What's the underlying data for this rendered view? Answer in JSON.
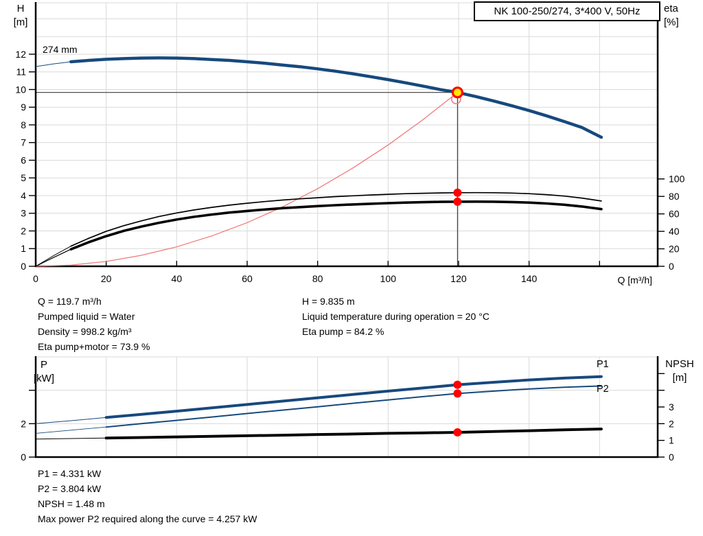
{
  "labels": {
    "h_axis": [
      "H",
      "[m]"
    ],
    "eta_axis": [
      "eta",
      "[%]"
    ],
    "q_axis": "Q [m³/h]",
    "p_axis": [
      "P",
      "[kW]"
    ],
    "npsh_axis": [
      "NPSH",
      "[m]"
    ],
    "impeller": "274 mm",
    "p1": "P1",
    "p2": "P2"
  },
  "annotations": {
    "mid_left": [
      "Q = 119.7 m³/h",
      "Pumped liquid = Water",
      "Density = 998.2 kg/m³",
      "Eta pump+motor = 73.9 %"
    ],
    "mid_right": [
      "H = 9.835 m",
      "Liquid temperature during operation = 20 °C",
      "Eta pump = 84.2 %"
    ],
    "bottom": [
      "P1 = 4.331 kW",
      "P2 = 3.804 kW",
      "NPSH = 1.48 m",
      "Max power P2 required along the curve = 4.257 kW"
    ]
  },
  "colors": {
    "curve_blue": "#17497d",
    "curve_black": "#000000",
    "system_red": "#f07878",
    "marker_red": "#ff0000",
    "duty_yellow": "#ffe800",
    "grid": "#d9d9d9",
    "crosshair": "#3c3c3c",
    "axis": "#000000",
    "label_blue": "#17497d"
  },
  "chart_data": [
    {
      "type": "line",
      "title": "NK 100-250/274, 3*400 V, 50Hz",
      "xlabel": "Q [m³/h]",
      "ylabel": "H [m]",
      "y2label": "eta [%]",
      "xlim": [
        0,
        176.5
      ],
      "x_ticks": [
        0,
        20,
        40,
        60,
        80,
        100,
        120,
        140,
        160
      ],
      "x_tick_labels": [
        "0",
        "20",
        "40",
        "60",
        "80",
        "100",
        "120",
        "140",
        ""
      ],
      "x_grid": [
        20,
        40,
        60,
        80,
        100,
        120,
        140,
        160
      ],
      "y_axes": {
        "H": {
          "lim": [
            0,
            14.91
          ],
          "ticks": [
            0,
            1,
            2,
            3,
            4,
            5,
            6,
            7,
            8,
            9,
            10,
            11,
            12
          ],
          "tick_labels": [
            "0",
            "1",
            "2",
            "3",
            "4",
            "5",
            "6",
            "7",
            "8",
            "9",
            "10",
            "11",
            "12"
          ],
          "grid": [
            1,
            2,
            3,
            4,
            5,
            6,
            7,
            8,
            9,
            10,
            11,
            12,
            13,
            14,
            14.91
          ]
        },
        "eta": {
          "lim": [
            0,
            100
          ],
          "ticks": [
            0,
            20,
            40,
            60,
            80,
            100
          ],
          "tick_labels": [
            "0",
            "20",
            "40",
            "60",
            "80",
            "100"
          ]
        }
      },
      "series": [
        {
          "name": "system-curve",
          "label": "system curve",
          "axis": "H",
          "color_key": "system_red",
          "width": 1.25,
          "points": [
            [
              0,
              0
            ],
            [
              10,
              0.07
            ],
            [
              20,
              0.27
            ],
            [
              30,
              0.62
            ],
            [
              40,
              1.1
            ],
            [
              50,
              1.72
            ],
            [
              60,
              2.47
            ],
            [
              70,
              3.36
            ],
            [
              80,
              4.39
            ],
            [
              90,
              5.56
            ],
            [
              100,
              6.86
            ],
            [
              110,
              8.31
            ],
            [
              119.7,
              9.835
            ]
          ]
        },
        {
          "name": "eta-pump-curve",
          "label": "eta pump",
          "axis": "eta",
          "color_key": "curve_black",
          "width": 1.7,
          "thin_until": 12,
          "thin_width": 0.9,
          "points": [
            [
              0,
              0
            ],
            [
              5,
              12
            ],
            [
              10,
              23
            ],
            [
              15,
              32
            ],
            [
              20,
              40
            ],
            [
              25,
              46.5
            ],
            [
              30,
              52
            ],
            [
              35,
              57
            ],
            [
              40,
              61
            ],
            [
              45,
              64.5
            ],
            [
              50,
              67.5
            ],
            [
              55,
              70
            ],
            [
              60,
              72.2
            ],
            [
              65,
              74.1
            ],
            [
              70,
              75.8
            ],
            [
              75,
              77.2
            ],
            [
              80,
              78.5
            ],
            [
              85,
              79.7
            ],
            [
              90,
              80.7
            ],
            [
              95,
              81.6
            ],
            [
              100,
              82.4
            ],
            [
              105,
              83.1
            ],
            [
              110,
              83.6
            ],
            [
              115,
              84
            ],
            [
              119.7,
              84.2
            ],
            [
              125,
              84.3
            ],
            [
              130,
              84.2
            ],
            [
              135,
              83.8
            ],
            [
              140,
              83.1
            ],
            [
              145,
              82
            ],
            [
              150,
              80.4
            ],
            [
              155,
              78.1
            ],
            [
              160.5,
              74.7
            ]
          ]
        },
        {
          "name": "eta-pump-motor-curve",
          "label": "eta pump+motor",
          "axis": "eta",
          "color_key": "curve_black",
          "width": 3.6,
          "thin_until": 12,
          "thin_width": 1.2,
          "points": [
            [
              0,
              0
            ],
            [
              5,
              10
            ],
            [
              10,
              19.5
            ],
            [
              15,
              27.5
            ],
            [
              20,
              34.5
            ],
            [
              25,
              40.5
            ],
            [
              30,
              45.5
            ],
            [
              35,
              49.8
            ],
            [
              40,
              53.5
            ],
            [
              45,
              56.6
            ],
            [
              50,
              59.2
            ],
            [
              55,
              61.5
            ],
            [
              60,
              63.3
            ],
            [
              65,
              65
            ],
            [
              70,
              66.5
            ],
            [
              75,
              67.7
            ],
            [
              80,
              68.9
            ],
            [
              85,
              69.9
            ],
            [
              90,
              70.8
            ],
            [
              95,
              71.6
            ],
            [
              100,
              72.3
            ],
            [
              105,
              72.9
            ],
            [
              110,
              73.4
            ],
            [
              115,
              73.8
            ],
            [
              119.7,
              73.9
            ],
            [
              125,
              74
            ],
            [
              130,
              73.9
            ],
            [
              135,
              73.5
            ],
            [
              140,
              72.9
            ],
            [
              145,
              71.9
            ],
            [
              150,
              70.5
            ],
            [
              155,
              68.4
            ],
            [
              160.5,
              65.4
            ]
          ]
        },
        {
          "name": "head-curve-274mm",
          "label": "274 mm",
          "axis": "H",
          "color_key": "curve_blue",
          "width": 4.5,
          "thin_until": 12,
          "thin_width": 1,
          "points": [
            [
              0,
              11.3
            ],
            [
              5,
              11.45
            ],
            [
              10,
              11.57
            ],
            [
              15,
              11.65
            ],
            [
              20,
              11.71
            ],
            [
              25,
              11.75
            ],
            [
              30,
              11.78
            ],
            [
              35,
              11.79
            ],
            [
              40,
              11.78
            ],
            [
              45,
              11.75
            ],
            [
              50,
              11.7
            ],
            [
              55,
              11.65
            ],
            [
              60,
              11.57
            ],
            [
              65,
              11.49
            ],
            [
              70,
              11.39
            ],
            [
              75,
              11.29
            ],
            [
              80,
              11.17
            ],
            [
              85,
              11.04
            ],
            [
              90,
              10.89
            ],
            [
              95,
              10.73
            ],
            [
              100,
              10.56
            ],
            [
              105,
              10.38
            ],
            [
              110,
              10.19
            ],
            [
              115,
              9.99
            ],
            [
              119.7,
              9.835
            ],
            [
              125,
              9.6
            ],
            [
              130,
              9.35
            ],
            [
              135,
              9.09
            ],
            [
              140,
              8.81
            ],
            [
              145,
              8.51
            ],
            [
              150,
              8.19
            ],
            [
              155,
              7.85
            ],
            [
              160.5,
              7.3
            ]
          ]
        }
      ],
      "crosshair": {
        "x": 119.7,
        "axis": "H",
        "value": 9.835
      },
      "markers": [
        {
          "name": "eta-pump-point",
          "type": "dot",
          "axis": "eta",
          "x": 119.7,
          "value": 84.2,
          "r": 6
        },
        {
          "name": "eta-pump-motor-point",
          "type": "dot",
          "axis": "eta",
          "x": 119.7,
          "value": 73.9,
          "r": 6
        },
        {
          "name": "requested-duty-circle",
          "type": "open",
          "axis": "H",
          "x": 119.3,
          "value": 9.45,
          "r": 6.5
        },
        {
          "name": "duty-point",
          "type": "duty",
          "axis": "H",
          "x": 119.7,
          "value": 9.835,
          "r": 7
        }
      ]
    },
    {
      "type": "line",
      "title": "",
      "xlabel": "",
      "ylabel": "P [kW]",
      "y2label": "NPSH [m]",
      "xlim": [
        0,
        176.5
      ],
      "x_ticks": [],
      "x_tick_labels": [],
      "x_grid": [
        20,
        40,
        60,
        80,
        100,
        120,
        140,
        160
      ],
      "y_axes": {
        "P": {
          "lim": [
            0,
            6
          ],
          "ticks": [
            0,
            2,
            4
          ],
          "tick_labels": [
            "0",
            "2",
            ""
          ],
          "grid": [
            2,
            4,
            6
          ]
        },
        "NPSH": {
          "lim": [
            0,
            6
          ],
          "ticks": [
            0,
            1,
            2,
            3,
            4,
            5
          ],
          "tick_labels": [
            "0",
            "1",
            "2",
            "3",
            "",
            ""
          ]
        }
      },
      "series": [
        {
          "name": "npsh-curve",
          "label": "NPSH",
          "axis": "NPSH",
          "color_key": "curve_black",
          "width": 4,
          "thin_until": 20,
          "thin_width": 1,
          "points": [
            [
              0,
              1.08
            ],
            [
              10,
              1.11
            ],
            [
              20,
              1.14
            ],
            [
              30,
              1.17
            ],
            [
              40,
              1.21
            ],
            [
              50,
              1.24
            ],
            [
              60,
              1.28
            ],
            [
              70,
              1.31
            ],
            [
              80,
              1.35
            ],
            [
              90,
              1.38
            ],
            [
              100,
              1.42
            ],
            [
              110,
              1.45
            ],
            [
              119.7,
              1.48
            ],
            [
              130,
              1.53
            ],
            [
              140,
              1.58
            ],
            [
              150,
              1.63
            ],
            [
              160.5,
              1.68
            ]
          ]
        },
        {
          "name": "p2-curve",
          "label": "P2",
          "axis": "P",
          "color_key": "curve_blue",
          "width": 2,
          "thin_until": 20,
          "thin_width": 0.9,
          "points": [
            [
              0,
              1.42
            ],
            [
              10,
              1.61
            ],
            [
              20,
              1.8
            ],
            [
              30,
              2.0
            ],
            [
              40,
              2.2
            ],
            [
              50,
              2.4
            ],
            [
              60,
              2.61
            ],
            [
              70,
              2.81
            ],
            [
              80,
              3.01
            ],
            [
              90,
              3.22
            ],
            [
              100,
              3.42
            ],
            [
              110,
              3.62
            ],
            [
              119.7,
              3.804
            ],
            [
              130,
              3.95
            ],
            [
              140,
              4.08
            ],
            [
              150,
              4.18
            ],
            [
              160.5,
              4.257
            ]
          ]
        },
        {
          "name": "p1-curve",
          "label": "P1",
          "axis": "P",
          "color_key": "curve_blue",
          "width": 4,
          "thin_until": 20,
          "thin_width": 1,
          "points": [
            [
              0,
              2.0
            ],
            [
              10,
              2.18
            ],
            [
              20,
              2.37
            ],
            [
              30,
              2.56
            ],
            [
              40,
              2.75
            ],
            [
              50,
              2.95
            ],
            [
              60,
              3.15
            ],
            [
              70,
              3.35
            ],
            [
              80,
              3.55
            ],
            [
              90,
              3.75
            ],
            [
              100,
              3.95
            ],
            [
              110,
              4.14
            ],
            [
              119.7,
              4.331
            ],
            [
              130,
              4.48
            ],
            [
              140,
              4.62
            ],
            [
              150,
              4.73
            ],
            [
              160.5,
              4.82
            ]
          ]
        }
      ],
      "markers": [
        {
          "name": "p1-point",
          "type": "dot",
          "axis": "P",
          "x": 119.7,
          "value": 4.331,
          "r": 6
        },
        {
          "name": "p2-point",
          "type": "dot",
          "axis": "P",
          "x": 119.7,
          "value": 3.804,
          "r": 6
        },
        {
          "name": "npsh-point",
          "type": "dot",
          "axis": "NPSH",
          "x": 119.7,
          "value": 1.48,
          "r": 6
        }
      ]
    }
  ]
}
